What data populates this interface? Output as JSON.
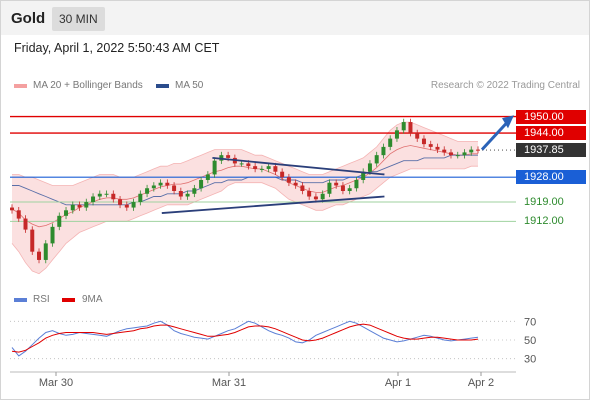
{
  "header": {
    "symbol": "Gold",
    "timeframe": "30 MIN"
  },
  "timestamp": "Friday, April 1, 2022 5:50:43 AM CET",
  "legend": {
    "bollinger": {
      "label": "MA 20 + Bollinger Bands",
      "color": "#f08080"
    },
    "ma50": {
      "label": "MA 50",
      "color": "#2b4c8c"
    }
  },
  "credit": "Research © 2022 Trading Central",
  "rsi_legend": {
    "rsi": {
      "label": "RSI",
      "color": "#5b7fd6"
    },
    "ma": {
      "label": "9MA",
      "color": "#e00000"
    }
  },
  "levels": [
    {
      "value": 1950.0,
      "label": "1950.00",
      "color": "#e00000",
      "style": "resistance"
    },
    {
      "value": 1944.0,
      "label": "1944.00",
      "color": "#e00000",
      "style": "resistance"
    },
    {
      "value": 1937.85,
      "label": "1937.85",
      "color": "#333333",
      "style": "last"
    },
    {
      "value": 1928.0,
      "label": "1928.00",
      "color": "#1a5fd6",
      "style": "pivot"
    },
    {
      "value": 1919.0,
      "label": "1919.00",
      "color": "#2e8b2e",
      "style": "support"
    },
    {
      "value": 1912.0,
      "label": "1912.00",
      "color": "#2e8b2e",
      "style": "support"
    }
  ],
  "chart_data": {
    "type": "candlestick",
    "title": "Gold 30 MIN",
    "x_ticks": [
      "Mar 30",
      "Mar 31",
      "Apr 1",
      "Apr 2"
    ],
    "y_range": [
      1890,
      1956
    ],
    "key_levels": [
      1950.0,
      1944.0,
      1937.85,
      1928.0,
      1919.0,
      1912.0
    ],
    "last_price": 1937.85,
    "close_path": [
      1916,
      1913,
      1909,
      1901,
      1898,
      1904,
      1910,
      1914,
      1916,
      1918,
      1917,
      1919,
      1921,
      1922,
      1922,
      1920,
      1918,
      1917,
      1919,
      1922,
      1924,
      1925,
      1926,
      1925,
      1923,
      1921,
      1922,
      1924,
      1927,
      1929,
      1934,
      1936,
      1935,
      1933,
      1933,
      1932,
      1931,
      1931,
      1932,
      1930,
      1928,
      1926,
      1925,
      1923,
      1921,
      1920,
      1922,
      1926,
      1925,
      1923,
      1924,
      1927,
      1930,
      1933,
      1936,
      1939,
      1942,
      1945,
      1948,
      1944,
      1942,
      1940,
      1939,
      1938,
      1937,
      1936,
      1936,
      1937,
      1938,
      1937.85
    ],
    "bollinger_upper": [
      1929,
      1929,
      1928,
      1928,
      1927,
      1926,
      1925,
      1925,
      1925,
      1925,
      1926,
      1927,
      1928,
      1929,
      1929,
      1929,
      1928,
      1928,
      1928,
      1929,
      1930,
      1931,
      1932,
      1932,
      1933,
      1933,
      1934,
      1935,
      1936,
      1937,
      1938,
      1938,
      1938,
      1938,
      1938,
      1937,
      1936,
      1936,
      1935,
      1934,
      1933,
      1932,
      1931,
      1930,
      1929,
      1929,
      1929,
      1930,
      1931,
      1932,
      1933,
      1934,
      1935,
      1937,
      1939,
      1942,
      1945,
      1947,
      1948,
      1948,
      1947,
      1946,
      1945,
      1944,
      1943,
      1942,
      1941,
      1941,
      1941,
      1941
    ],
    "bollinger_lower": [
      1904,
      1901,
      1897,
      1894,
      1893,
      1895,
      1898,
      1901,
      1904,
      1906,
      1908,
      1909,
      1910,
      1911,
      1912,
      1912,
      1912,
      1912,
      1913,
      1914,
      1915,
      1916,
      1917,
      1918,
      1918,
      1918,
      1918,
      1919,
      1920,
      1921,
      1922,
      1923,
      1925,
      1926,
      1926,
      1926,
      1926,
      1926,
      1925,
      1924,
      1922,
      1920,
      1919,
      1918,
      1917,
      1916,
      1916,
      1917,
      1918,
      1918,
      1919,
      1920,
      1921,
      1922,
      1924,
      1926,
      1928,
      1929,
      1930,
      1931,
      1931,
      1931,
      1931,
      1931,
      1931,
      1931,
      1931,
      1931,
      1932,
      1932
    ],
    "ma50": [
      1925,
      1925,
      1924,
      1923,
      1922,
      1921,
      1920,
      1919,
      1918,
      1918,
      1918,
      1918,
      1918,
      1918,
      1918,
      1918,
      1918,
      1918,
      1919,
      1919,
      1920,
      1921,
      1921,
      1922,
      1922,
      1922,
      1923,
      1923,
      1924,
      1925,
      1926,
      1926,
      1927,
      1927,
      1927,
      1928,
      1928,
      1928,
      1928,
      1928,
      1927,
      1927,
      1927,
      1926,
      1926,
      1926,
      1926,
      1927,
      1927,
      1927,
      1928,
      1928,
      1929,
      1930,
      1930,
      1931,
      1932,
      1933,
      1934,
      1934,
      1934,
      1935,
      1935,
      1935,
      1935,
      1936,
      1936,
      1936,
      1936,
      1936
    ],
    "rsi_path": [
      42,
      33,
      38,
      45,
      52,
      58,
      60,
      57,
      55,
      56,
      58,
      57,
      56,
      55,
      54,
      57,
      60,
      62,
      63,
      64,
      65,
      68,
      70,
      66,
      60,
      57,
      55,
      53,
      52,
      51,
      54,
      57,
      60,
      62,
      66,
      70,
      68,
      64,
      60,
      57,
      55,
      52,
      48,
      47,
      50,
      55,
      58,
      61,
      64,
      67,
      70,
      68,
      64,
      60,
      56,
      52,
      50,
      48,
      49,
      51,
      53,
      55,
      54,
      52,
      50,
      49,
      50,
      51,
      52,
      53
    ],
    "rsi_ma_path": [
      38,
      37,
      39,
      43,
      47,
      52,
      55,
      57,
      58,
      58,
      58,
      58,
      58,
      57,
      56,
      57,
      58,
      59,
      60,
      62,
      63,
      65,
      66,
      66,
      64,
      62,
      60,
      58,
      56,
      54,
      54,
      55,
      56,
      58,
      61,
      64,
      65,
      65,
      64,
      62,
      59,
      56,
      53,
      50,
      49,
      50,
      52,
      55,
      58,
      61,
      64,
      66,
      67,
      66,
      63,
      60,
      57,
      54,
      52,
      51,
      51,
      52,
      53,
      53,
      52,
      51,
      50,
      50,
      50,
      51
    ],
    "rsi_levels": [
      70,
      50,
      30
    ],
    "trendlines": [
      {
        "name": "upper-channel",
        "from": [
          0.4,
          1935
        ],
        "to": [
          0.74,
          1929
        ]
      },
      {
        "name": "lower-channel",
        "from": [
          0.3,
          1915
        ],
        "to": [
          0.74,
          1921
        ]
      }
    ]
  }
}
